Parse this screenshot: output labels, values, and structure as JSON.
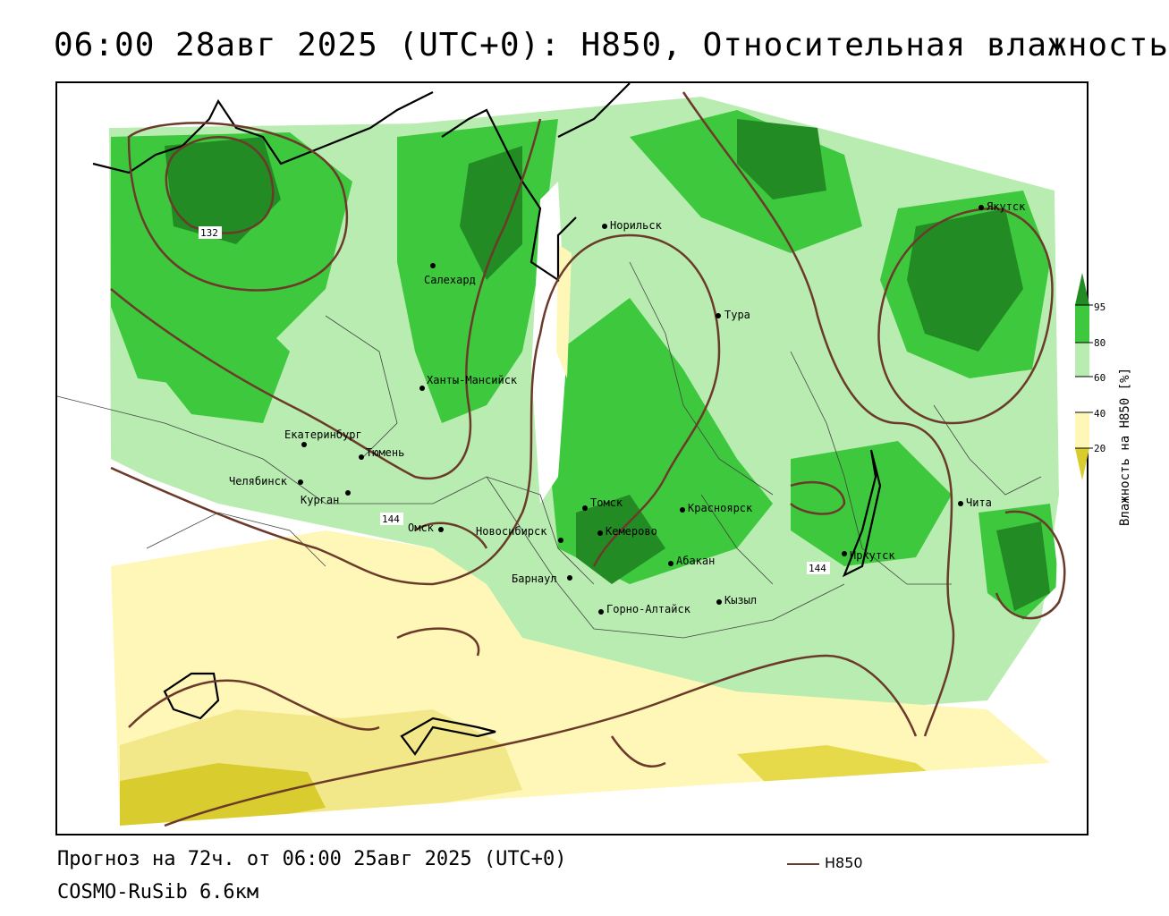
{
  "title": "06:00 28авг 2025 (UTC+0): Н850, Относительная влажность",
  "footer": {
    "forecast": "Прогноз на 72ч. от 06:00 25авг 2025 (UTC+0)",
    "model": "COSMO-RuSib 6.6км",
    "contour_legend": "H850"
  },
  "colorbar": {
    "title": "Влажность на Н850 [%]",
    "ticks": [
      "95",
      "80",
      "60",
      "40",
      "20"
    ],
    "colors": {
      "c95": "#238b23",
      "c80": "#3dc83d",
      "c60": "#b8ecb0",
      "c40": "#fff7b8",
      "c20": "#f2e88a",
      "c_low": "#d9cc2e"
    }
  },
  "contour_labels": [
    "132",
    "144",
    "144"
  ],
  "cities": [
    "Норильск",
    "Якутск",
    "Салехард",
    "Тура",
    "Ханты-Мансийск",
    "Екатеринбург",
    "Тюмень",
    "Челябинск",
    "Курган",
    "Омск",
    "Новосибирск",
    "Томск",
    "Красноярск",
    "Кемерово",
    "Барнаул",
    "Абакан",
    "Иркутск",
    "Чита",
    "Кызыл",
    "Горно-Алтайск"
  ]
}
